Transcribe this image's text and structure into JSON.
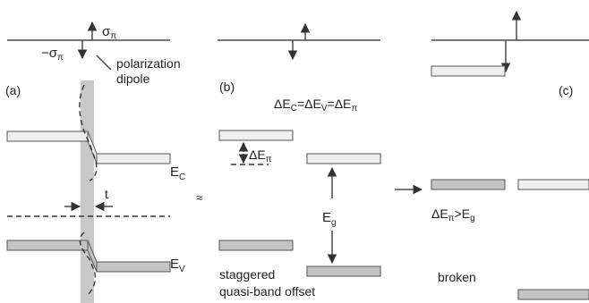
{
  "panels": {
    "a": {
      "tag": "(a)"
    },
    "b": {
      "tag": "(b)"
    },
    "c": {
      "tag": "(c)"
    }
  },
  "labels": {
    "sigma_pos": "σ",
    "sigma_pos_sub": "π",
    "sigma_neg": "−σ",
    "sigma_neg_sub": "π",
    "polarization_line1": "polarization",
    "polarization_line2": "dipole",
    "offset_eq": {
      "d1": "ΔE",
      "s1": "C",
      "eq1": "=",
      "d2": "ΔE",
      "s2": "V",
      "eq2": "=",
      "d3": "ΔE",
      "s3": "π"
    },
    "ec": {
      "main": "E",
      "sub": "C"
    },
    "ev": {
      "main": "E",
      "sub": "V"
    },
    "thickness": "t",
    "approx": "≈",
    "delta_epi": {
      "main": "ΔE",
      "sub": "π"
    },
    "eg": {
      "main": "E",
      "sub": "g"
    },
    "condition": {
      "d": "ΔE",
      "s": "π",
      "gt": ">E",
      "g": "g"
    },
    "staggered_line1": "staggered",
    "staggered_line2": "quasi-band offset",
    "broken": "broken"
  },
  "colors": {
    "line": "#4a4a4a",
    "band_light": "#eeeeee",
    "band_dark": "#c4c4c4",
    "barrier": "#c8c8c8"
  }
}
